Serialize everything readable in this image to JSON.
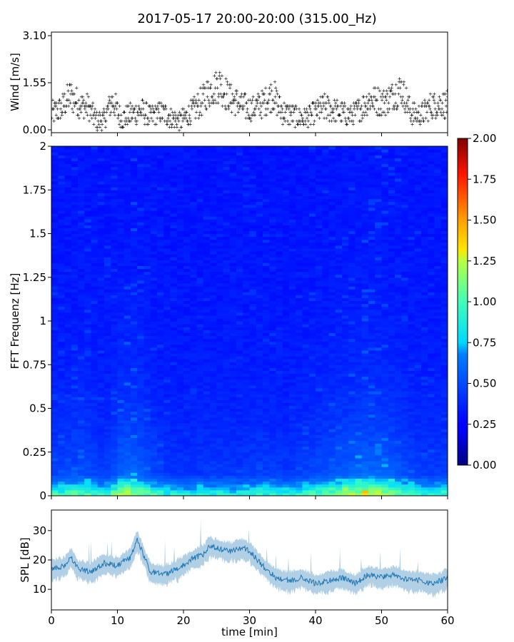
{
  "chart_data": [
    {
      "type": "scatter",
      "title": "2017-05-17 20:00-20:00 (315.00_Hz)",
      "ylabel": "Wind [m/s]",
      "xlim": [
        0,
        60
      ],
      "ylim": [
        0,
        3.1
      ],
      "yticks": [
        "0.00",
        "1.55",
        "3.10"
      ],
      "color": "#1f77b4",
      "segments": [
        {
          "x": [
            0,
            60
          ],
          "y": [
            0.5,
            0.5
          ]
        },
        {
          "x": 0.0,
          "y": 0.55
        },
        {
          "x": 1.5,
          "y": 0.7
        },
        {
          "x": 2.8,
          "y": 1.15
        },
        {
          "x": 4.0,
          "y": 0.9
        },
        {
          "x": 5.5,
          "y": 0.75
        },
        {
          "x": 7.0,
          "y": 0.3
        },
        {
          "x": 8.0,
          "y": 0.35
        },
        {
          "x": 9.2,
          "y": 1.0
        },
        {
          "x": 10.5,
          "y": 0.4
        },
        {
          "x": 12.0,
          "y": 0.5
        },
        {
          "x": 13.5,
          "y": 0.65
        },
        {
          "x": 15.0,
          "y": 0.45
        },
        {
          "x": 16.5,
          "y": 0.6
        },
        {
          "x": 18.0,
          "y": 0.45
        },
        {
          "x": 19.5,
          "y": 0.3
        },
        {
          "x": 21.0,
          "y": 0.55
        },
        {
          "x": 22.5,
          "y": 0.9
        },
        {
          "x": 24.0,
          "y": 1.3
        },
        {
          "x": 25.5,
          "y": 1.55
        },
        {
          "x": 26.5,
          "y": 1.2
        },
        {
          "x": 27.5,
          "y": 1.0
        },
        {
          "x": 29.0,
          "y": 0.8
        },
        {
          "x": 30.5,
          "y": 0.7
        },
        {
          "x": 32.0,
          "y": 0.9
        },
        {
          "x": 33.5,
          "y": 1.2
        },
        {
          "x": 35.0,
          "y": 0.6
        },
        {
          "x": 36.5,
          "y": 0.5
        },
        {
          "x": 38.0,
          "y": 0.4
        },
        {
          "x": 39.5,
          "y": 0.5
        },
        {
          "x": 41.0,
          "y": 0.75
        },
        {
          "x": 42.5,
          "y": 0.7
        },
        {
          "x": 44.0,
          "y": 0.55
        },
        {
          "x": 45.5,
          "y": 0.5
        },
        {
          "x": 47.0,
          "y": 0.75
        },
        {
          "x": 48.5,
          "y": 1.05
        },
        {
          "x": 50.0,
          "y": 0.9
        },
        {
          "x": 51.5,
          "y": 1.1
        },
        {
          "x": 53.0,
          "y": 1.4
        },
        {
          "x": 54.5,
          "y": 0.55
        },
        {
          "x": 56.0,
          "y": 0.5
        },
        {
          "x": 57.5,
          "y": 0.8
        },
        {
          "x": 59.0,
          "y": 0.9
        },
        {
          "x": 60.0,
          "y": 0.85
        }
      ]
    },
    {
      "type": "heatmap",
      "ylabel": "FFT Frequenz [Hz]",
      "xlim": [
        0,
        60
      ],
      "ylim": [
        0,
        2
      ],
      "yticks": [
        "0",
        "0.25",
        "0.5",
        "0.75",
        "1",
        "1.25",
        "1.5",
        "1.75",
        "2"
      ],
      "colormap": "jet",
      "colorbar": {
        "range": [
          0,
          2
        ],
        "ticks": [
          "0.00",
          "0.25",
          "0.50",
          "0.75",
          "1.00",
          "1.25",
          "1.50",
          "1.75",
          "2.00"
        ]
      }
    },
    {
      "type": "line",
      "xlabel": "time [min]",
      "ylabel": "SPL [dB]",
      "xlim": [
        0,
        60
      ],
      "ylim": [
        3,
        37
      ],
      "xticks": [
        "0",
        "10",
        "20",
        "30",
        "40",
        "50",
        "60"
      ],
      "yticks": [
        "10",
        "20",
        "30"
      ],
      "color": "#1f77b4",
      "x": [
        0,
        2,
        3,
        4,
        6,
        8,
        10,
        12,
        13,
        15,
        17,
        19,
        21,
        23,
        24,
        25,
        27,
        29,
        30,
        32,
        34,
        36,
        38,
        40,
        42,
        44,
        46,
        48,
        50,
        52,
        54,
        56,
        58,
        60
      ],
      "y": [
        17,
        18,
        21,
        17,
        16,
        19,
        18,
        21,
        27,
        16,
        15,
        17,
        20,
        22,
        25,
        24,
        23,
        24,
        23,
        18,
        14,
        13,
        14,
        12,
        13,
        14,
        12,
        15,
        14,
        15,
        13,
        13,
        12,
        14
      ]
    }
  ]
}
